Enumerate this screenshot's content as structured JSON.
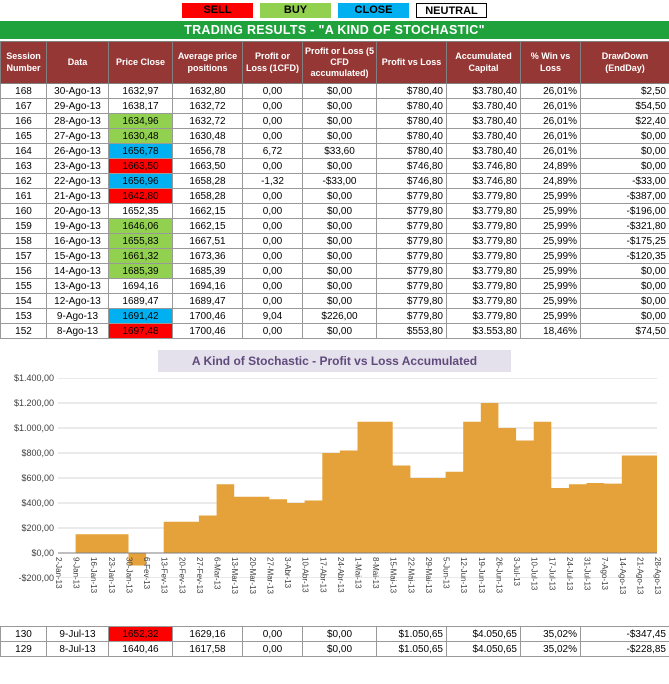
{
  "title": "TRADING RESULTS - \"A KIND OF STOCHASTIC\"",
  "colors": {
    "title_bar_bg": "#1FA23C",
    "table_header_bg": "#953734",
    "chart_title_bg": "#E4E0EC",
    "chart_title_text": "#604A7B"
  },
  "legend": {
    "items": [
      {
        "label": "SELL",
        "color": "#FF0000"
      },
      {
        "label": "BUY",
        "color": "#92D050"
      },
      {
        "label": "CLOSE",
        "color": "#00B0F0"
      },
      {
        "label": "NEUTRAL",
        "color": "#FFFFFF"
      }
    ]
  },
  "state_colors": {
    "sell": "#FF0000",
    "buy": "#92D050",
    "close": "#00B0F0",
    "neutral": "#FFFFFF"
  },
  "table": {
    "headers": [
      "Session Number",
      "Data",
      "Price Close",
      "Average price positions",
      "Profit or Loss (1CFD)",
      "Profit or Loss (5 CFD accumulated)",
      "Profit vs Loss",
      "Accumulated Capital",
      "% Win vs Loss",
      "DrawDown (EndDay)"
    ],
    "rows": [
      {
        "session": "168",
        "date": "30-Ago-13",
        "price_close": "1632,97",
        "price_state": "neutral",
        "avg_price": "1632,80",
        "pl_1cfd": "0,00",
        "pl_5cfd": "$0,00",
        "profit_vs_loss": "$780,40",
        "accumulated": "$3.780,40",
        "win_vs_loss": "26,01%",
        "drawdown": "$2,50"
      },
      {
        "session": "167",
        "date": "29-Ago-13",
        "price_close": "1638,17",
        "price_state": "neutral",
        "avg_price": "1632,72",
        "pl_1cfd": "0,00",
        "pl_5cfd": "$0,00",
        "profit_vs_loss": "$780,40",
        "accumulated": "$3.780,40",
        "win_vs_loss": "26,01%",
        "drawdown": "$54,50"
      },
      {
        "session": "166",
        "date": "28-Ago-13",
        "price_close": "1634,96",
        "price_state": "buy",
        "avg_price": "1632,72",
        "pl_1cfd": "0,00",
        "pl_5cfd": "$0,00",
        "profit_vs_loss": "$780,40",
        "accumulated": "$3.780,40",
        "win_vs_loss": "26,01%",
        "drawdown": "$22,40"
      },
      {
        "session": "165",
        "date": "27-Ago-13",
        "price_close": "1630,48",
        "price_state": "buy",
        "avg_price": "1630,48",
        "pl_1cfd": "0,00",
        "pl_5cfd": "$0,00",
        "profit_vs_loss": "$780,40",
        "accumulated": "$3.780,40",
        "win_vs_loss": "26,01%",
        "drawdown": "$0,00"
      },
      {
        "session": "164",
        "date": "26-Ago-13",
        "price_close": "1656,78",
        "price_state": "close",
        "avg_price": "1656,78",
        "pl_1cfd": "6,72",
        "pl_5cfd": "$33,60",
        "profit_vs_loss": "$780,40",
        "accumulated": "$3.780,40",
        "win_vs_loss": "26,01%",
        "drawdown": "$0,00"
      },
      {
        "session": "163",
        "date": "23-Ago-13",
        "price_close": "1663,50",
        "price_state": "sell",
        "avg_price": "1663,50",
        "pl_1cfd": "0,00",
        "pl_5cfd": "$0,00",
        "profit_vs_loss": "$746,80",
        "accumulated": "$3.746,80",
        "win_vs_loss": "24,89%",
        "drawdown": "$0,00"
      },
      {
        "session": "162",
        "date": "22-Ago-13",
        "price_close": "1656,96",
        "price_state": "close",
        "avg_price": "1658,28",
        "pl_1cfd": "-1,32",
        "pl_5cfd": "-$33,00",
        "profit_vs_loss": "$746,80",
        "accumulated": "$3.746,80",
        "win_vs_loss": "24,89%",
        "drawdown": "-$33,00"
      },
      {
        "session": "161",
        "date": "21-Ago-13",
        "price_close": "1642,80",
        "price_state": "sell",
        "avg_price": "1658,28",
        "pl_1cfd": "0,00",
        "pl_5cfd": "$0,00",
        "profit_vs_loss": "$779,80",
        "accumulated": "$3.779,80",
        "win_vs_loss": "25,99%",
        "drawdown": "-$387,00"
      },
      {
        "session": "160",
        "date": "20-Ago-13",
        "price_close": "1652,35",
        "price_state": "neutral",
        "avg_price": "1662,15",
        "pl_1cfd": "0,00",
        "pl_5cfd": "$0,00",
        "profit_vs_loss": "$779,80",
        "accumulated": "$3.779,80",
        "win_vs_loss": "25,99%",
        "drawdown": "-$196,00"
      },
      {
        "session": "159",
        "date": "19-Ago-13",
        "price_close": "1646,06",
        "price_state": "buy",
        "avg_price": "1662,15",
        "pl_1cfd": "0,00",
        "pl_5cfd": "$0,00",
        "profit_vs_loss": "$779,80",
        "accumulated": "$3.779,80",
        "win_vs_loss": "25,99%",
        "drawdown": "-$321,80"
      },
      {
        "session": "158",
        "date": "16-Ago-13",
        "price_close": "1655,83",
        "price_state": "buy",
        "avg_price": "1667,51",
        "pl_1cfd": "0,00",
        "pl_5cfd": "$0,00",
        "profit_vs_loss": "$779,80",
        "accumulated": "$3.779,80",
        "win_vs_loss": "25,99%",
        "drawdown": "-$175,25"
      },
      {
        "session": "157",
        "date": "15-Ago-13",
        "price_close": "1661,32",
        "price_state": "buy",
        "avg_price": "1673,36",
        "pl_1cfd": "0,00",
        "pl_5cfd": "$0,00",
        "profit_vs_loss": "$779,80",
        "accumulated": "$3.779,80",
        "win_vs_loss": "25,99%",
        "drawdown": "-$120,35"
      },
      {
        "session": "156",
        "date": "14-Ago-13",
        "price_close": "1685,39",
        "price_state": "buy",
        "avg_price": "1685,39",
        "pl_1cfd": "0,00",
        "pl_5cfd": "$0,00",
        "profit_vs_loss": "$779,80",
        "accumulated": "$3.779,80",
        "win_vs_loss": "25,99%",
        "drawdown": "$0,00"
      },
      {
        "session": "155",
        "date": "13-Ago-13",
        "price_close": "1694,16",
        "price_state": "neutral",
        "avg_price": "1694,16",
        "pl_1cfd": "0,00",
        "pl_5cfd": "$0,00",
        "profit_vs_loss": "$779,80",
        "accumulated": "$3.779,80",
        "win_vs_loss": "25,99%",
        "drawdown": "$0,00"
      },
      {
        "session": "154",
        "date": "12-Ago-13",
        "price_close": "1689,47",
        "price_state": "neutral",
        "avg_price": "1689,47",
        "pl_1cfd": "0,00",
        "pl_5cfd": "$0,00",
        "profit_vs_loss": "$779,80",
        "accumulated": "$3.779,80",
        "win_vs_loss": "25,99%",
        "drawdown": "$0,00"
      },
      {
        "session": "153",
        "date": "9-Ago-13",
        "price_close": "1691,42",
        "price_state": "close",
        "avg_price": "1700,46",
        "pl_1cfd": "9,04",
        "pl_5cfd": "$226,00",
        "profit_vs_loss": "$779,80",
        "accumulated": "$3.779,80",
        "win_vs_loss": "25,99%",
        "drawdown": "$0,00"
      },
      {
        "session": "152",
        "date": "8-Ago-13",
        "price_close": "1697,48",
        "price_state": "sell",
        "avg_price": "1700,46",
        "pl_1cfd": "0,00",
        "pl_5cfd": "$0,00",
        "profit_vs_loss": "$553,80",
        "accumulated": "$3.553,80",
        "win_vs_loss": "18,46%",
        "drawdown": "$74,50"
      }
    ],
    "bottom_rows": [
      {
        "session": "130",
        "date": "9-Jul-13",
        "price_close": "1652,32",
        "price_state": "sell",
        "avg_price": "1629,16",
        "pl_1cfd": "0,00",
        "pl_5cfd": "$0,00",
        "profit_vs_loss": "$1.050,65",
        "accumulated": "$4.050,65",
        "win_vs_loss": "35,02%",
        "drawdown": "-$347,45"
      },
      {
        "session": "129",
        "date": "8-Jul-13",
        "price_close": "1640,46",
        "price_state": "neutral",
        "avg_price": "1617,58",
        "pl_1cfd": "0,00",
        "pl_5cfd": "$0,00",
        "profit_vs_loss": "$1.050,65",
        "accumulated": "$4.050,65",
        "win_vs_loss": "35,02%",
        "drawdown": "-$228,85"
      }
    ]
  },
  "chart_data": {
    "type": "area",
    "title": "A Kind of Stochastic - Profit vs Loss Accumulated",
    "x": [
      "2-Jan-13",
      "9-Jan-13",
      "16-Jan-13",
      "23-Jan-13",
      "30-Jan-13",
      "6-Fev-13",
      "13-Fev-13",
      "20-Fev-13",
      "27-Fev-13",
      "6-Mar-13",
      "13-Mar-13",
      "20-Mar-13",
      "27-Mar-13",
      "3-Abr-13",
      "10-Abr-13",
      "17-Abr-13",
      "24-Abr-13",
      "1-Mai-13",
      "8-Mai-13",
      "15-Mai-13",
      "22-Mai-13",
      "29-Mai-13",
      "5-Jun-13",
      "12-Jun-13",
      "19-Jun-13",
      "26-Jun-13",
      "3-Jul-13",
      "10-Jul-13",
      "17-Jul-13",
      "24-Jul-13",
      "31-Jul-13",
      "7-Ago-13",
      "14-Ago-13",
      "21-Ago-13",
      "28-Ago-13"
    ],
    "values": [
      0,
      150,
      150,
      150,
      -100,
      0,
      250,
      250,
      300,
      550,
      450,
      450,
      430,
      400,
      420,
      800,
      820,
      1050,
      1050,
      700,
      600,
      600,
      650,
      1050,
      1200,
      1000,
      900,
      1050,
      520,
      550,
      560,
      555,
      780,
      780,
      780
    ],
    "ylim": [
      -200,
      1400
    ],
    "ytick_values": [
      1400,
      1200,
      1000,
      800,
      600,
      400,
      200,
      0,
      -200
    ],
    "ytick_labels": [
      "$1.400,00",
      "$1.200,00",
      "$1.000,00",
      "$800,00",
      "$600,00",
      "$400,00",
      "$200,00",
      "$0,00",
      "-$200,00"
    ],
    "xlabel": "",
    "ylabel": "",
    "grid": true,
    "legend_position": "none",
    "fill_color": "#E6A23A",
    "interpolation": "step-after"
  }
}
